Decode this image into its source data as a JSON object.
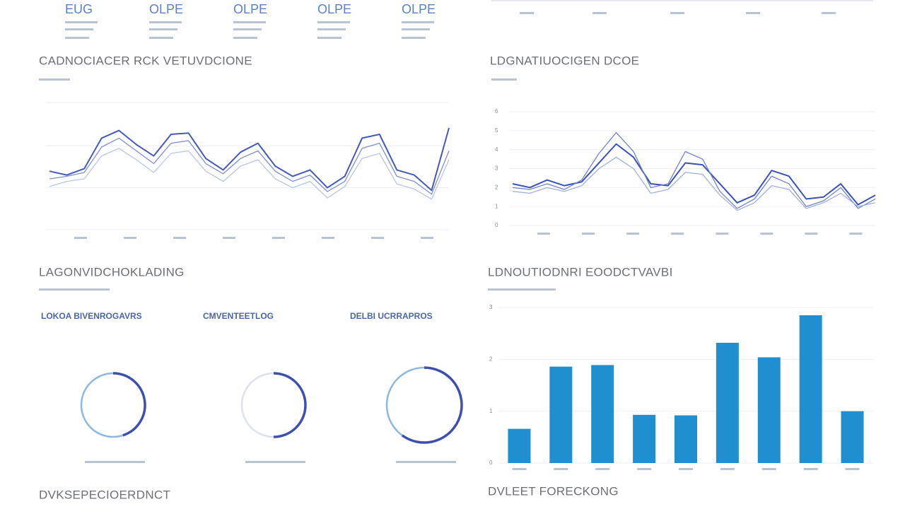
{
  "kpis": [
    "EUG",
    "OLPE",
    "OLPE",
    "OLPE",
    "OLPE"
  ],
  "chart_data": [
    {
      "type": "line",
      "title": "CADNOCIACER RCK VETUVDCIONE",
      "x": [
        0,
        1,
        2,
        3,
        4,
        5,
        6,
        7,
        8,
        9,
        10,
        11,
        12,
        13,
        14,
        15,
        16,
        17,
        18,
        19,
        20,
        21,
        22,
        23
      ],
      "xlim": [
        0,
        23
      ],
      "ylim": [
        0,
        100
      ],
      "yticks": [
        0,
        33,
        66,
        100
      ],
      "grid": true,
      "series": [
        {
          "color": "#4459b8",
          "values": [
            46,
            43,
            48,
            72,
            78,
            67,
            58,
            75,
            76,
            56,
            47,
            61,
            68,
            50,
            42,
            47,
            33,
            42,
            72,
            75,
            47,
            43,
            31,
            80
          ]
        },
        {
          "color": "#7d8fcf",
          "values": [
            40,
            42,
            45,
            65,
            72,
            62,
            52,
            68,
            70,
            52,
            44,
            56,
            62,
            46,
            38,
            43,
            30,
            38,
            64,
            68,
            42,
            38,
            28,
            62
          ]
        },
        {
          "color": "#b7c5e6",
          "values": [
            34,
            38,
            40,
            58,
            64,
            55,
            45,
            60,
            62,
            46,
            38,
            50,
            55,
            40,
            33,
            38,
            25,
            34,
            56,
            60,
            36,
            32,
            24,
            55
          ]
        }
      ]
    },
    {
      "type": "line",
      "title": "LDGNATIUOCIGEN DCOE",
      "x": [
        0,
        1,
        2,
        3,
        4,
        5,
        6,
        7,
        8,
        9,
        10,
        11,
        12,
        13,
        14,
        15,
        16,
        17,
        18,
        19,
        20,
        21
      ],
      "xlim": [
        0,
        21
      ],
      "ylim": [
        0,
        6
      ],
      "yticks": [
        0,
        1,
        2,
        3,
        4,
        5,
        6
      ],
      "grid": true,
      "series": [
        {
          "color": "#3a52b8",
          "values": [
            2.2,
            2.0,
            2.4,
            2.1,
            2.3,
            3.3,
            4.3,
            3.6,
            2.2,
            2.1,
            3.3,
            3.2,
            2.2,
            1.2,
            1.6,
            2.9,
            2.6,
            1.4,
            1.5,
            2.2,
            1.1,
            1.6
          ]
        },
        {
          "color": "#6f83cc",
          "values": [
            2.0,
            1.9,
            2.2,
            1.9,
            2.4,
            3.8,
            4.9,
            3.9,
            2.0,
            2.2,
            3.9,
            3.5,
            1.8,
            0.9,
            1.4,
            2.6,
            2.2,
            1.0,
            1.3,
            2.0,
            0.9,
            1.4
          ]
        },
        {
          "color": "#9fb0dd",
          "values": [
            1.8,
            1.7,
            2.0,
            1.8,
            2.1,
            3.0,
            3.6,
            3.0,
            1.7,
            1.9,
            2.8,
            2.7,
            1.6,
            0.8,
            1.2,
            2.1,
            1.9,
            0.9,
            1.2,
            1.7,
            1.0,
            1.2
          ]
        }
      ]
    },
    {
      "type": "donut",
      "title": "LAGONVIDCHOKLADING",
      "categories": [
        "LOKOA BIVENROGAVRS",
        "CMVENTEETLOG",
        "DELBI UCRRAPROS"
      ],
      "values": [
        45,
        50,
        60
      ],
      "color": "#3e4fae",
      "track": "#8fb8e0"
    },
    {
      "type": "bar",
      "title": "LDNOUTIODNRI EOODCTVAVBI",
      "values": [
        0.66,
        1.86,
        1.89,
        0.93,
        0.92,
        2.32,
        2.04,
        2.85,
        1.0
      ],
      "ylim": [
        0,
        3
      ],
      "yticks": [
        0,
        1,
        2,
        3
      ],
      "grid": true,
      "color": "#1f8fd0"
    }
  ],
  "footer": [
    "DVKSEPECIOERDNCT",
    "DVLEET FORECKONG"
  ]
}
